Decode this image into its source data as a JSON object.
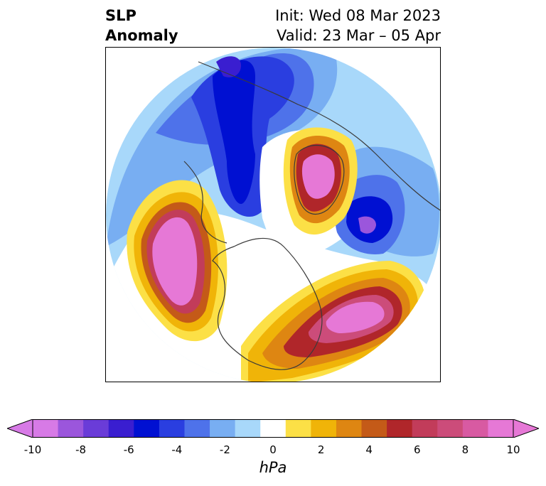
{
  "header": {
    "title_line1": "SLP",
    "title_line2": "Anomaly",
    "init_line": "Init: Wed 08 Mar 2023",
    "valid_line": "Valid: 23 Mar – 05 Apr"
  },
  "colorbar": {
    "unit": "hPa",
    "tick_labels": [
      "-10",
      "-8",
      "-6",
      "-4",
      "-2",
      "0",
      "2",
      "4",
      "6",
      "8",
      "10"
    ],
    "levels": [
      -10,
      -9,
      -8,
      -7,
      -6,
      -5,
      -4,
      -3,
      -2,
      -1,
      1,
      2,
      3,
      4,
      5,
      6,
      7,
      8,
      9,
      10
    ],
    "colors": [
      "#d77ae6",
      "#9b56dc",
      "#6a3cd8",
      "#3a1ed0",
      "#0010d2",
      "#2a3ee0",
      "#4e72ea",
      "#78aef2",
      "#a8d8fa",
      "#ffffff",
      "#fce046",
      "#f0b408",
      "#de8612",
      "#c45a18",
      "#b0262a",
      "#c23c5a",
      "#cc4c7a",
      "#d85aa2",
      "#e678d6"
    ],
    "extend": "both"
  },
  "map": {
    "projection": "north-polar-stereographic",
    "features": {
      "blue_anomalies": [
        "Siberia/Arctic low",
        "North Atlantic low",
        "Aleutian ring"
      ],
      "red_anomalies": [
        "North Pacific high",
        "Greenland high",
        "Eastern US / Atlantic high"
      ]
    }
  }
}
